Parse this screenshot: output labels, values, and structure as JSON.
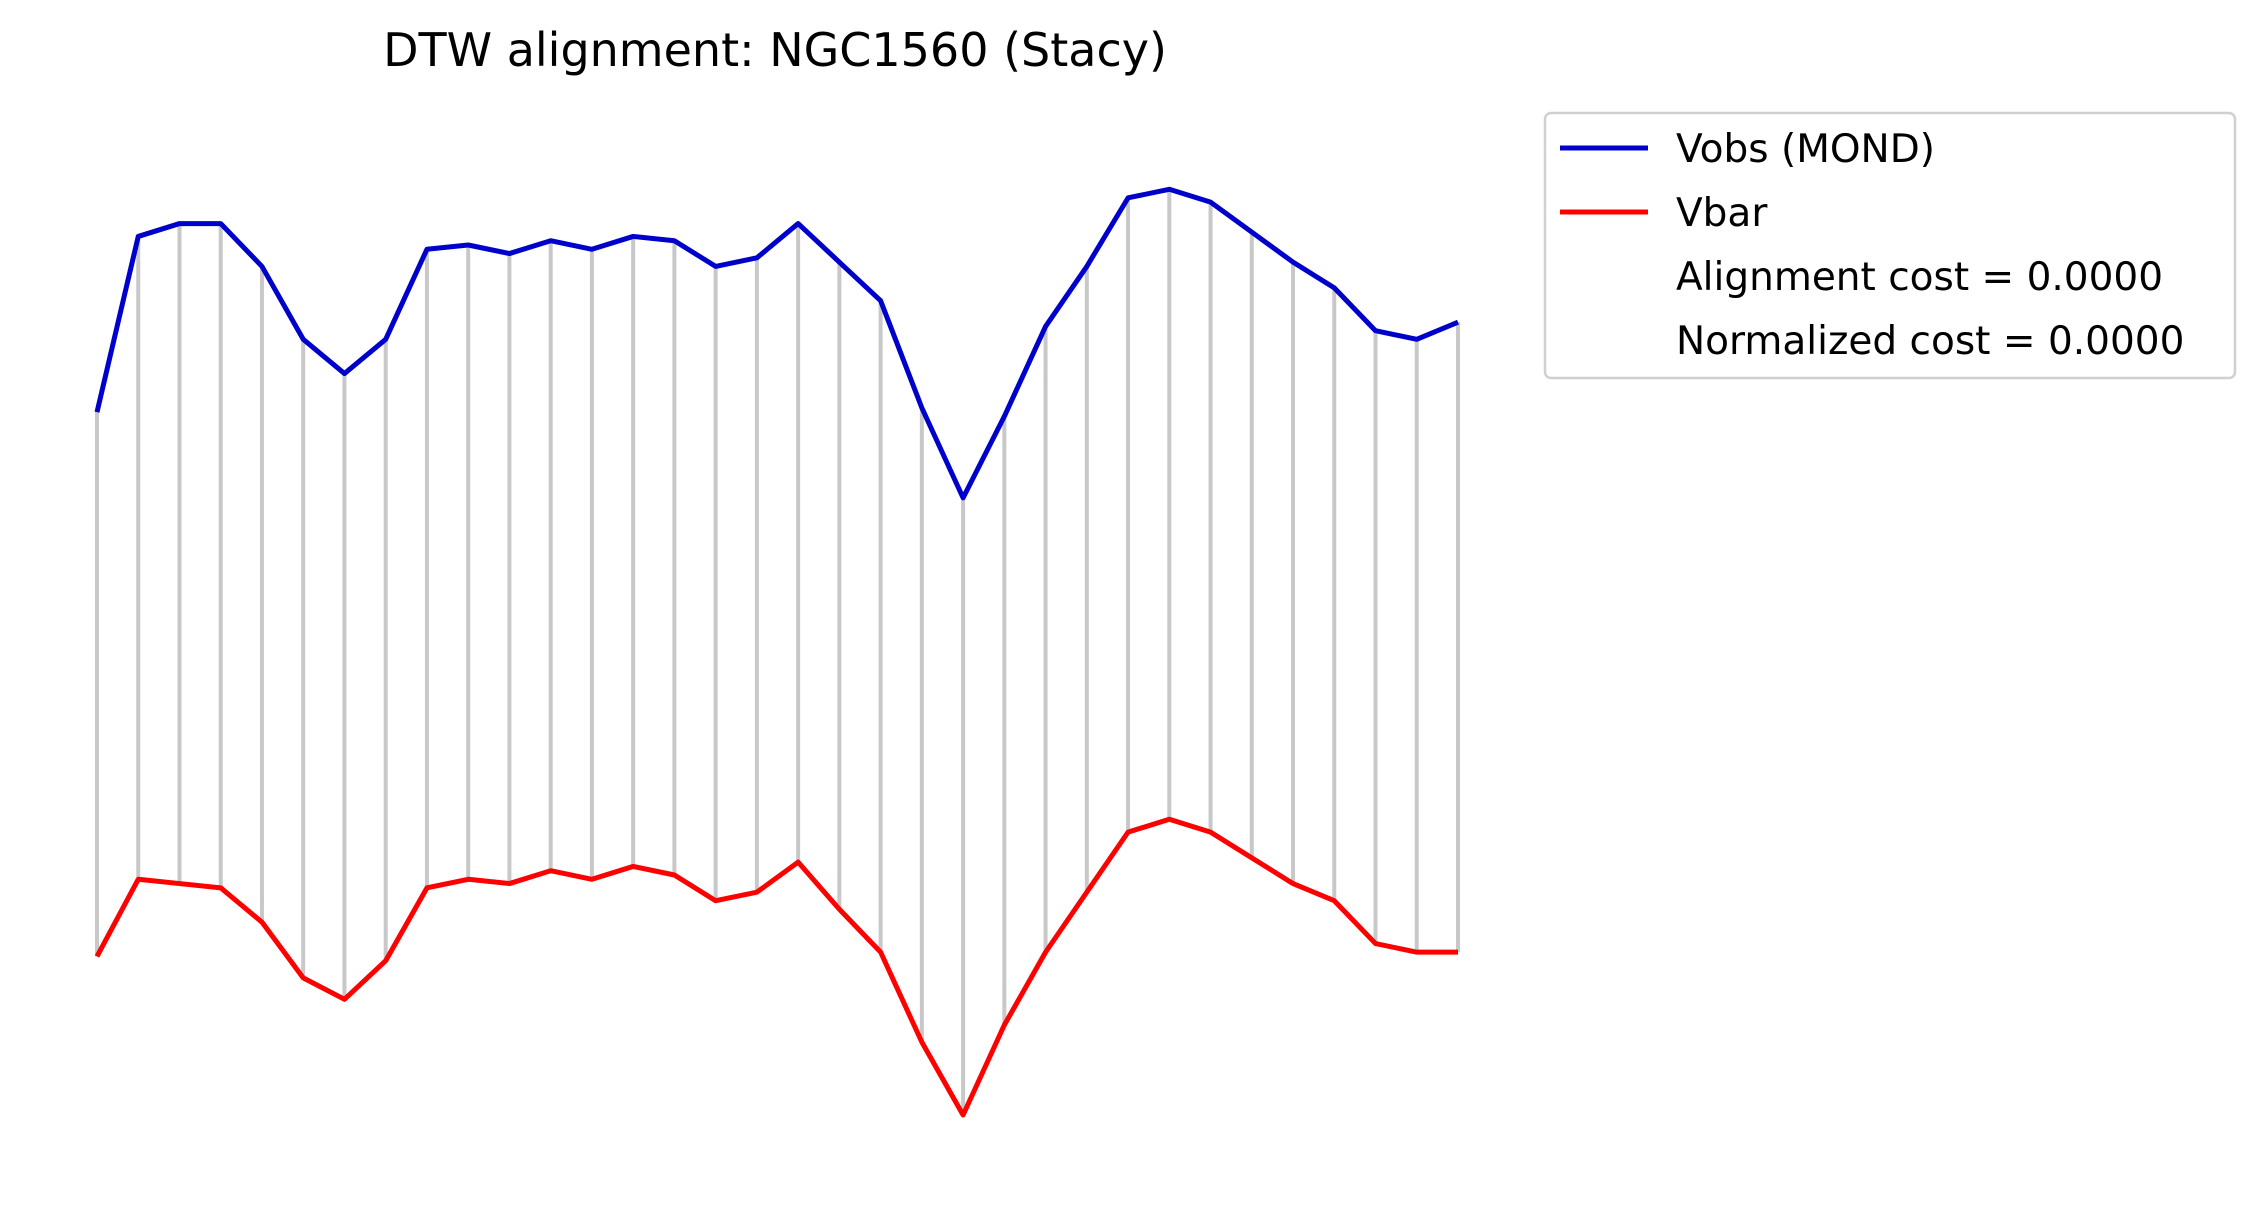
{
  "chart_data": {
    "type": "line",
    "title": "DTW alignment: NGC1560 (Stacy)",
    "xlabel": "",
    "ylabel": "",
    "axes_visible": false,
    "grid": false,
    "legend_placement": "outside-top-right",
    "alignment_lines": true,
    "x": [
      0,
      1,
      2,
      3,
      4,
      5,
      6,
      7,
      8,
      9,
      10,
      11,
      12,
      13,
      14,
      15,
      16,
      17,
      18,
      19,
      20,
      21,
      22,
      23,
      24,
      25,
      26,
      27,
      28,
      29,
      30,
      31,
      32,
      33
    ],
    "series": [
      {
        "name": "Vobs (MOND)",
        "color": "#0000cc",
        "values": [
          248,
          289,
          292,
          292,
          282,
          265,
          257,
          265,
          286,
          287,
          285,
          288,
          286,
          289,
          288,
          282,
          284,
          292,
          283,
          274,
          249,
          228,
          247,
          268,
          282,
          298,
          300,
          297,
          290,
          283,
          277,
          267,
          265,
          269
        ]
      },
      {
        "name": "Vbar",
        "color": "#ff0000",
        "values": [
          121,
          139,
          138,
          137,
          129,
          116,
          111,
          120,
          137,
          139,
          138,
          141,
          139,
          142,
          140,
          134,
          136,
          143,
          132,
          122,
          101,
          84,
          105,
          122,
          136,
          150,
          153,
          150,
          144,
          138,
          134,
          124,
          122,
          122
        ]
      }
    ],
    "alignment_line_color": "#c8c8c8",
    "legend": {
      "entries": [
        "Vobs (MOND)",
        "Vbar"
      ],
      "notes": [
        "Alignment cost = 0.0000",
        "Normalized cost = 0.0000"
      ]
    },
    "ylim": [
      70,
      315
    ]
  }
}
